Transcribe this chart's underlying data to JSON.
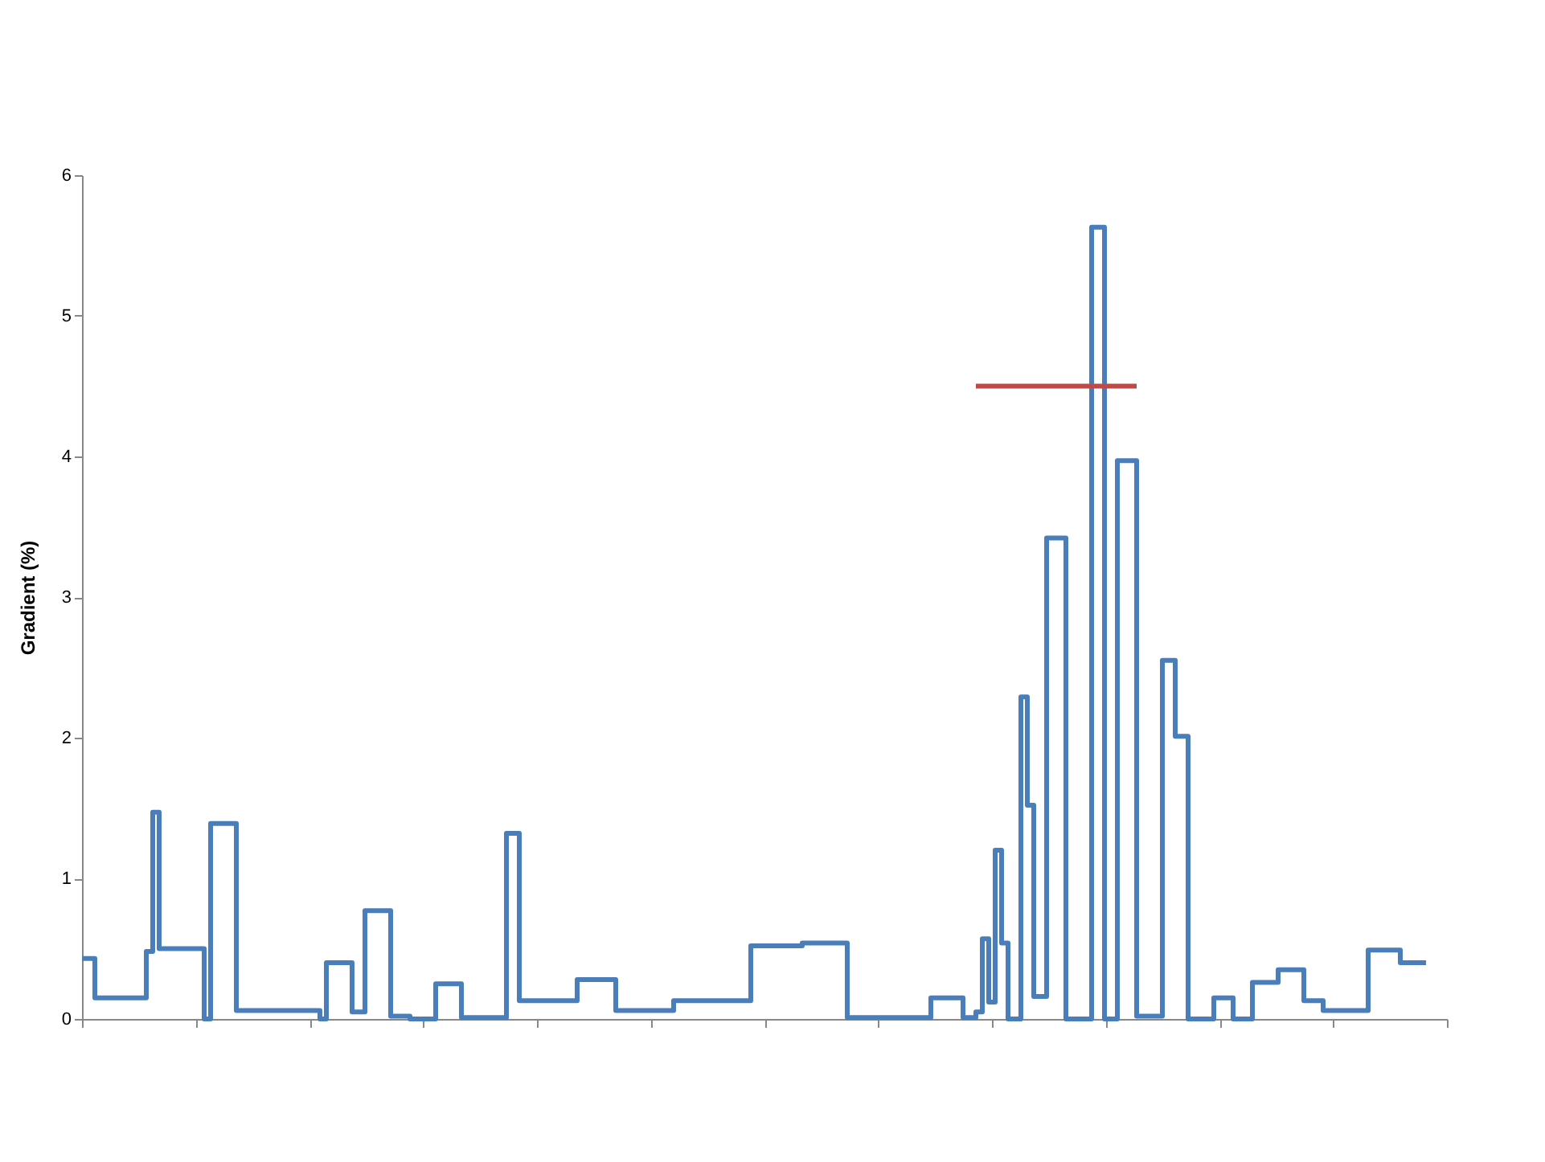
{
  "chart_data": {
    "type": "step",
    "ylabel": "Gradient (%)",
    "ylim": [
      0,
      6
    ],
    "yticks": [
      0,
      1,
      2,
      3,
      4,
      5,
      6
    ],
    "tick_labels": "y",
    "categories": [
      null,
      null,
      null,
      null,
      null,
      null,
      null,
      null,
      null,
      null,
      null,
      null,
      null,
      null,
      null,
      null,
      null,
      null,
      null,
      null,
      null,
      null,
      null,
      null,
      null,
      null,
      null,
      null,
      null,
      null,
      null,
      null,
      null,
      null,
      null,
      null,
      null,
      null,
      null,
      null,
      null,
      null,
      null,
      null,
      null,
      null,
      null,
      null,
      null,
      null,
      null,
      null,
      null,
      null,
      null,
      null,
      null,
      null,
      null,
      null,
      null,
      null,
      null,
      null,
      null,
      null,
      null,
      null,
      null,
      null,
      null,
      null,
      null,
      null,
      null,
      null,
      null,
      null,
      null,
      null,
      null,
      null,
      null,
      null,
      null,
      null,
      null,
      null,
      null,
      null,
      null,
      null,
      null,
      null,
      null,
      null,
      null,
      null,
      null,
      null,
      null,
      null,
      null,
      null,
      null,
      null,
      null,
      null,
      null,
      null,
      null,
      null,
      null,
      null,
      null,
      null,
      null,
      null,
      null,
      null,
      null,
      null,
      null,
      null,
      null,
      null,
      null,
      null,
      null,
      null,
      null,
      null,
      null,
      null,
      null,
      null,
      null,
      null,
      null,
      null,
      null,
      null,
      null,
      null,
      null,
      null,
      null,
      null,
      null,
      null,
      null,
      null,
      null,
      null,
      null,
      null,
      null,
      null,
      null,
      null,
      null,
      null,
      null,
      null,
      null,
      null,
      null,
      null,
      null,
      null,
      null,
      null,
      null,
      null,
      null,
      null,
      null,
      null,
      null,
      null,
      null,
      null,
      null,
      null,
      null,
      null,
      null,
      null,
      null,
      null,
      null,
      null,
      null,
      null,
      null,
      null,
      null,
      null,
      null,
      null,
      null,
      null,
      null,
      null,
      null,
      null,
      null,
      null,
      null,
      null
    ],
    "series": [
      {
        "color": "#4a7ebb",
        "values": [
          0.43,
          0.43,
          0.15,
          0.15,
          0.15,
          0.15,
          0.15,
          0.15,
          0.15,
          0.15,
          0.48,
          1.47,
          0.5,
          0.5,
          0.5,
          0.5,
          0.5,
          0.5,
          0.5,
          0,
          1.39,
          1.39,
          1.39,
          1.39,
          0.06,
          0.06,
          0.06,
          0.06,
          0.06,
          0.06,
          0.06,
          0.06,
          0.06,
          0.06,
          0.06,
          0.06,
          0.06,
          0,
          0.4,
          0.4,
          0.4,
          0.4,
          0.05,
          0.05,
          0.77,
          0.77,
          0.77,
          0.77,
          0.02,
          0.02,
          0.02,
          0,
          0,
          0,
          0,
          0.25,
          0.25,
          0.25,
          0.25,
          0.01,
          0.01,
          0.01,
          0.01,
          0.01,
          0.01,
          0.01,
          1.32,
          1.32,
          0.13,
          0.13,
          0.13,
          0.13,
          0.13,
          0.13,
          0.13,
          0.13,
          0.13,
          0.28,
          0.28,
          0.28,
          0.28,
          0.28,
          0.28,
          0.06,
          0.06,
          0.06,
          0.06,
          0.06,
          0.06,
          0.06,
          0.06,
          0.06,
          0.13,
          0.13,
          0.13,
          0.13,
          0.13,
          0.13,
          0.13,
          0.13,
          0.13,
          0.13,
          0.13,
          0.13,
          0.52,
          0.52,
          0.52,
          0.52,
          0.52,
          0.52,
          0.52,
          0.52,
          0.54,
          0.54,
          0.54,
          0.54,
          0.54,
          0.54,
          0.54,
          0.01,
          0.01,
          0.01,
          0.01,
          0.01,
          0.01,
          0.01,
          0.01,
          0.01,
          0.01,
          0.01,
          0.01,
          0.01,
          0.15,
          0.15,
          0.15,
          0.15,
          0.15,
          0.01,
          0.01,
          0.05,
          0.57,
          0.12,
          1.2,
          0.54,
          0,
          0,
          2.29,
          1.52,
          0.16,
          0.16,
          3.42,
          3.42,
          3.42,
          0,
          0,
          0,
          0,
          5.63,
          5.63,
          0,
          0,
          3.97,
          3.97,
          3.97,
          0.02,
          0.02,
          0.02,
          0.02,
          2.55,
          2.55,
          2.01,
          2.01,
          0,
          0,
          0,
          0,
          0.15,
          0.15,
          0.15,
          0,
          0,
          0,
          0.26,
          0.26,
          0.26,
          0.26,
          0.35,
          0.35,
          0.35,
          0.35,
          0.13,
          0.13,
          0.13,
          0.06,
          0.06,
          0.06,
          0.06,
          0.06,
          0.06,
          0.06,
          0.49,
          0.49,
          0.49,
          0.49,
          0.49,
          0.4,
          0.4,
          0.4,
          0.4,
          0.4
        ]
      },
      {
        "type": "line",
        "color": "#be4b48",
        "values": [
          null,
          null,
          null,
          null,
          null,
          null,
          null,
          null,
          null,
          null,
          null,
          null,
          null,
          null,
          null,
          null,
          null,
          null,
          null,
          null,
          null,
          null,
          null,
          null,
          null,
          null,
          null,
          null,
          null,
          null,
          null,
          null,
          null,
          null,
          null,
          null,
          null,
          null,
          null,
          null,
          null,
          null,
          null,
          null,
          null,
          null,
          null,
          null,
          null,
          null,
          null,
          null,
          null,
          null,
          null,
          null,
          null,
          null,
          null,
          null,
          null,
          null,
          null,
          null,
          null,
          null,
          null,
          null,
          null,
          null,
          null,
          null,
          null,
          null,
          null,
          null,
          null,
          null,
          null,
          null,
          null,
          null,
          null,
          null,
          null,
          null,
          null,
          null,
          null,
          null,
          null,
          null,
          null,
          null,
          null,
          null,
          null,
          null,
          null,
          null,
          null,
          null,
          null,
          null,
          null,
          null,
          null,
          null,
          null,
          null,
          null,
          null,
          null,
          null,
          null,
          null,
          null,
          null,
          null,
          null,
          null,
          null,
          null,
          null,
          null,
          null,
          null,
          null,
          null,
          null,
          null,
          null,
          null,
          null,
          null,
          null,
          null,
          null,
          null,
          4.5,
          4.5,
          4.5,
          4.5,
          4.5,
          4.5,
          4.5,
          4.5,
          4.5,
          4.5,
          4.5,
          4.5,
          4.5,
          4.5,
          4.5,
          4.5,
          4.5,
          4.5,
          4.5,
          4.5,
          4.5,
          4.5,
          4.5,
          4.5,
          4.5,
          4.5,
          null,
          null,
          null,
          null,
          null,
          null,
          null,
          null,
          null,
          null,
          null,
          null,
          null,
          null,
          null,
          null,
          null,
          null,
          null,
          null,
          null,
          null,
          null,
          null,
          null,
          null,
          null,
          null,
          null,
          null,
          null,
          null,
          null,
          null,
          null,
          null,
          null,
          null,
          null,
          null,
          null,
          null,
          null,
          null,
          null
        ]
      }
    ]
  }
}
